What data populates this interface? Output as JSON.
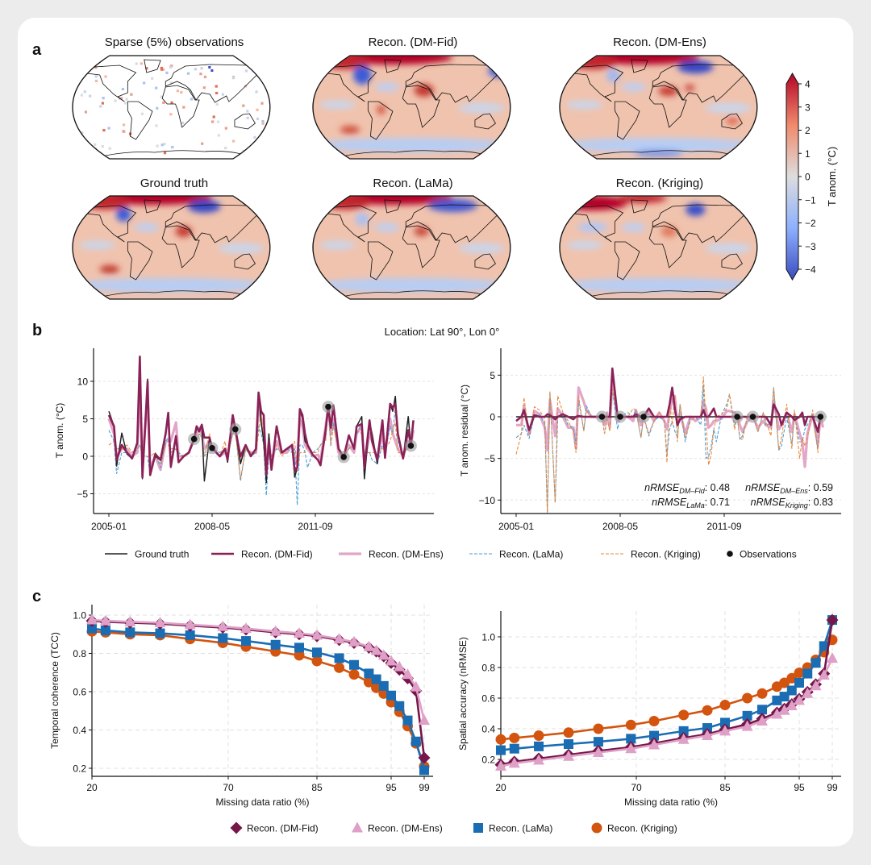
{
  "panel_labels": {
    "a": "a",
    "b": "b",
    "c": "c"
  },
  "panel_a": {
    "maps": [
      {
        "title": "Sparse (5%) observations"
      },
      {
        "title": "Recon. (DM-Fid)"
      },
      {
        "title": "Recon. (DM-Ens)"
      },
      {
        "title": "Ground truth"
      },
      {
        "title": "Recon. (LaMa)"
      },
      {
        "title": "Recon. (Kriging)"
      }
    ],
    "colorbar": {
      "label": "T anom. (°C)",
      "ticks": [
        "4",
        "3",
        "2",
        "1",
        "0",
        "−1",
        "−2",
        "−3",
        "−4"
      ],
      "range": [
        -4,
        4
      ],
      "colormap": [
        "#b40426",
        "#f08a6c",
        "#dddddd",
        "#8db0fe",
        "#3b4cc0"
      ]
    }
  },
  "panel_b": {
    "location": "Location: Lat 90°, Lon 0°",
    "chart_data": [
      {
        "type": "line",
        "ylabel": "T anom. (°C)",
        "yticks": [
          "−5",
          "0",
          "5",
          "10"
        ],
        "ytick_values": [
          -5,
          0,
          5,
          10
        ],
        "xticks": [
          "2005-01",
          "2008-05",
          "2011-09"
        ],
        "ylim": [
          -7,
          14.5
        ],
        "grid": "horizontal dashed"
      },
      {
        "type": "line",
        "ylabel": "T anom. residual (°C)",
        "yticks": [
          "−10",
          "−5",
          "0",
          "5"
        ],
        "ytick_values": [
          -10,
          -5,
          0,
          5
        ],
        "xticks": [
          "2005-01",
          "2008-05",
          "2011-09"
        ],
        "ylim": [
          -11.5,
          8
        ],
        "grid": "horizontal dashed",
        "metrics": [
          {
            "label": "nRMSE",
            "sub": "DM–Fid",
            "value": ": 0.48"
          },
          {
            "label": "nRMSE",
            "sub": "DM–Ens",
            "value": ": 0.59"
          },
          {
            "label": "nRMSE",
            "sub": "LaMa",
            "value": ": 0.71"
          },
          {
            "label": "nRMSE",
            "sub": "Kriging",
            "value": ": 0.83"
          }
        ]
      }
    ],
    "series_data": {
      "dates": [
        "2005-01",
        "2005-03",
        "2005-04",
        "2005-06",
        "2005-08",
        "2005-10",
        "2005-12",
        "2006-01",
        "2006-02",
        "2006-04",
        "2006-05",
        "2006-07",
        "2006-09",
        "2006-11",
        "2006-12",
        "2007-01",
        "2007-03",
        "2007-04",
        "2007-06",
        "2007-08",
        "2007-10",
        "2007-11",
        "2007-12",
        "2008-01",
        "2008-02",
        "2008-04",
        "2008-05",
        "2008-08",
        "2008-10",
        "2008-11",
        "2009-01",
        "2009-02",
        "2009-04",
        "2009-06",
        "2009-08",
        "2009-10",
        "2009-11",
        "2009-12",
        "2010-01",
        "2010-02",
        "2010-03",
        "2010-04",
        "2010-06",
        "2010-08",
        "2010-10",
        "2010-12",
        "2011-01",
        "2011-02",
        "2011-03",
        "2011-04",
        "2011-05",
        "2011-06",
        "2011-08",
        "2011-10",
        "2011-11",
        "2012-01",
        "2012-02",
        "2012-03",
        "2012-04",
        "2012-06",
        "2012-08",
        "2012-10",
        "2012-12",
        "2013-01",
        "2013-03",
        "2013-04",
        "2013-06",
        "2013-07",
        "2013-09",
        "2013-11",
        "2013-12",
        "2014-02",
        "2014-03",
        "2014-04",
        "2014-05",
        "2014-07",
        "2014-09",
        "2014-10",
        "2014-11"
      ],
      "ground_truth": [
        6,
        4,
        -1.3,
        3.1,
        0.3,
        -0.3,
        1.8,
        13,
        -3,
        10.3,
        -2.5,
        0,
        -0.5,
        3.3,
        5.8,
        -1.5,
        2.7,
        -0.8,
        0,
        0.5,
        2.3,
        4,
        3.3,
        4.2,
        -3.3,
        2.5,
        1.1,
        0,
        1,
        -0.8,
        5.5,
        3.6,
        -1,
        1.5,
        0,
        1,
        8.5,
        4.5,
        2,
        -3.5,
        3,
        -1.5,
        4,
        0.5,
        1,
        1.5,
        -2.8,
        -1.5,
        6.3,
        5,
        2,
        1.5,
        0.2,
        -0.5,
        -1.2,
        3.5,
        6.6,
        4,
        6.8,
        1,
        -0.1,
        2.8,
        1,
        4,
        5.3,
        -3,
        4.5,
        3,
        -1,
        4.8,
        0.2,
        7,
        6,
        8,
        3,
        -0.3,
        5.3,
        1.4,
        4.8
      ],
      "dm_fid": [
        5.5,
        4,
        -0.5,
        1.5,
        0.5,
        -0.3,
        1.8,
        13.3,
        -2.8,
        10,
        -2.5,
        0.3,
        -0.5,
        3,
        5.8,
        -1.4,
        2.7,
        -0.8,
        0,
        0.5,
        2.3,
        4,
        3.3,
        4.2,
        2.5,
        2.5,
        1.1,
        0,
        1,
        -0.5,
        5.5,
        3.6,
        0,
        1.5,
        0,
        1,
        8.5,
        6,
        5.5,
        -2.5,
        2,
        -1.8,
        4,
        0.5,
        1,
        1.5,
        -2,
        -1.5,
        6.3,
        5.5,
        3,
        1.5,
        0.2,
        -0.5,
        -1.2,
        3.5,
        6.6,
        3.8,
        6.8,
        1,
        -0.1,
        2.8,
        1,
        4,
        4.3,
        -1.5,
        4.8,
        2,
        -0.5,
        4.8,
        -0.2,
        7,
        6.5,
        7,
        3,
        -0.3,
        3.5,
        1.4,
        4.8
      ],
      "dm_ens": [
        5,
        3,
        0,
        1,
        1,
        0,
        0.5,
        9,
        -1,
        8,
        -1.5,
        0,
        -1.8,
        2,
        2,
        2,
        4.5,
        0,
        0,
        0.5,
        2.3,
        3,
        3.8,
        3,
        1,
        2,
        1.1,
        0,
        0.5,
        0,
        4.5,
        3.6,
        -0.5,
        1,
        0.5,
        0.5,
        7,
        5,
        4,
        -1,
        2,
        -1,
        2,
        0.5,
        0.5,
        1.5,
        -1,
        -0.5,
        5,
        4,
        1.5,
        1,
        0,
        0.2,
        -0.5,
        4,
        6.6,
        3,
        5,
        0.5,
        -0.1,
        1.5,
        0.5,
        3,
        4,
        -1,
        3,
        2,
        -0.5,
        3,
        0.5,
        5,
        3,
        2,
        1,
        0,
        2,
        1.4,
        3.5
      ],
      "lama": [
        3.5,
        2,
        -2.3,
        0.5,
        0.5,
        0,
        1,
        1.5,
        0,
        0,
        -2.5,
        0.5,
        -1.5,
        2,
        2.5,
        0.5,
        1,
        0.5,
        0,
        0.5,
        2.3,
        2,
        3,
        2.5,
        0,
        1,
        1.1,
        0.5,
        1,
        0,
        3,
        3.6,
        -3.3,
        1,
        0,
        0.5,
        4,
        3,
        1.5,
        -5.2,
        0.5,
        0,
        1,
        0.5,
        1,
        0.5,
        1,
        -6.5,
        1.5,
        1.5,
        0.5,
        -1.5,
        0.5,
        1,
        1.5,
        2.5,
        6.6,
        1.3,
        4.5,
        1,
        -0.1,
        1,
        1.5,
        3,
        4.5,
        0.5,
        0.5,
        -0.5,
        -1,
        1.5,
        0.5,
        4,
        3,
        6.5,
        2,
        0,
        1.5,
        1.4,
        4
      ],
      "kriging": [
        1.5,
        2,
        1,
        1,
        1.5,
        0.5,
        1.5,
        1.5,
        0,
        0,
        0,
        0.5,
        -1,
        1.5,
        1.5,
        1,
        1,
        0,
        0,
        0.5,
        2.3,
        2,
        3,
        2.5,
        0,
        3,
        1.1,
        0,
        2,
        0,
        3,
        3.6,
        -3,
        1,
        0.5,
        0.5,
        3,
        6.5,
        1,
        -1,
        0,
        0,
        1.5,
        0,
        1,
        1.5,
        2,
        -2,
        0.5,
        0.5,
        0.5,
        1.5,
        0.5,
        0.5,
        1.5,
        2,
        6.6,
        1.5,
        4,
        1.3,
        -0.1,
        1,
        1.5,
        3.5,
        3,
        0.5,
        0.5,
        0.5,
        0.5,
        1,
        1,
        2,
        3.5,
        4.5,
        0.5,
        0.5,
        1,
        1.4,
        4
      ],
      "observations": {
        "dates": [
          "2007-10",
          "2008-05",
          "2009-02",
          "2012-02",
          "2012-08",
          "2014-10"
        ],
        "values": [
          2.3,
          1.1,
          3.6,
          6.6,
          -0.1,
          1.4
        ]
      }
    },
    "legend": [
      "Ground truth",
      "Recon. (DM-Fid)",
      "Recon. (DM-Ens)",
      "Recon. (LaMa)",
      "Recon. (Kriging)",
      "Observations"
    ]
  },
  "panel_c": {
    "chart_data": [
      {
        "type": "line",
        "xlabel": "Missing data ratio (%)",
        "ylabel": "Temporal coherence (TCC)",
        "xticks": [
          20,
          70,
          85,
          95,
          99
        ],
        "yticks": [
          "0.2",
          "0.4",
          "0.6",
          "0.8",
          "1.0"
        ],
        "ytick_values": [
          0.2,
          0.4,
          0.6,
          0.8,
          1.0
        ],
        "ylim": [
          0.17,
          1.03
        ],
        "grid": "dashed",
        "x": [
          20,
          25,
          34,
          45,
          56,
          68,
          73,
          78,
          82,
          85,
          88,
          90,
          92,
          93,
          94,
          95,
          96,
          97,
          98,
          99
        ],
        "series": [
          {
            "name": "Recon. (Kriging)",
            "values": [
              0.915,
              0.91,
              0.9,
              0.895,
              0.875,
              0.855,
              0.835,
              0.81,
              0.79,
              0.76,
              0.725,
              0.69,
              0.65,
              0.62,
              0.59,
              0.545,
              0.495,
              0.42,
              0.33,
              0.21
            ]
          },
          {
            "name": "Recon. (LaMa)",
            "values": [
              0.93,
              0.92,
              0.91,
              0.905,
              0.895,
              0.88,
              0.865,
              0.845,
              0.83,
              0.805,
              0.775,
              0.74,
              0.695,
              0.665,
              0.63,
              0.58,
              0.525,
              0.45,
              0.34,
              0.19
            ]
          },
          {
            "name": "Recon. (DM-Fid)",
            "values": [
              0.97,
              0.965,
              0.96,
              0.955,
              0.945,
              0.935,
              0.925,
              0.91,
              0.9,
              0.89,
              0.87,
              0.855,
              0.83,
              0.81,
              0.785,
              0.75,
              0.715,
              0.67,
              0.605,
              0.255
            ]
          },
          {
            "name": "Recon. (DM-Ens)",
            "values": [
              0.975,
              0.97,
              0.965,
              0.96,
              0.95,
              0.94,
              0.93,
              0.915,
              0.905,
              0.895,
              0.875,
              0.86,
              0.835,
              0.815,
              0.79,
              0.76,
              0.73,
              0.69,
              0.625,
              0.45
            ]
          }
        ]
      },
      {
        "type": "line",
        "xlabel": "Missing data ratio (%)",
        "ylabel": "Spatial accuracy (nRMSE)",
        "xticks": [
          20,
          70,
          85,
          95,
          99
        ],
        "yticks": [
          "0.2",
          "0.4",
          "0.6",
          "0.8",
          "1.0"
        ],
        "ytick_values": [
          0.2,
          0.4,
          0.6,
          0.8,
          1.0
        ],
        "ylim": [
          0.09,
          1.16
        ],
        "grid": "dashed",
        "x": [
          20,
          25,
          34,
          45,
          56,
          68,
          73,
          78,
          82,
          85,
          88,
          90,
          92,
          93,
          94,
          95,
          96,
          97,
          98,
          99
        ],
        "series": [
          {
            "name": "Recon. (Kriging)",
            "values": [
              0.33,
              0.34,
              0.355,
              0.375,
              0.4,
              0.425,
              0.45,
              0.49,
              0.52,
              0.555,
              0.6,
              0.63,
              0.675,
              0.7,
              0.73,
              0.765,
              0.8,
              0.85,
              0.9,
              0.98
            ]
          },
          {
            "name": "Recon. (LaMa)",
            "values": [
              0.26,
              0.27,
              0.285,
              0.3,
              0.315,
              0.335,
              0.355,
              0.385,
              0.405,
              0.44,
              0.485,
              0.525,
              0.585,
              0.61,
              0.65,
              0.7,
              0.76,
              0.83,
              0.94,
              1.11
            ]
          },
          {
            "name": "Recon. (DM-Fid)",
            "values": [
              0.165,
              0.185,
              0.205,
              0.23,
              0.255,
              0.28,
              0.305,
              0.34,
              0.365,
              0.395,
              0.43,
              0.465,
              0.505,
              0.53,
              0.56,
              0.595,
              0.64,
              0.69,
              0.76,
              1.11
            ]
          },
          {
            "name": "Recon. (DM-Ens)",
            "values": [
              0.155,
              0.175,
              0.195,
              0.22,
              0.245,
              0.27,
              0.295,
              0.33,
              0.355,
              0.385,
              0.415,
              0.45,
              0.495,
              0.52,
              0.55,
              0.585,
              0.63,
              0.68,
              0.75,
              0.86
            ]
          }
        ]
      }
    ],
    "legend": [
      "Recon. (DM-Fid)",
      "Recon. (DM-Ens)",
      "Recon. (LaMa)",
      "Recon. (Kriging)"
    ]
  },
  "colors": {
    "ground_truth": "#222222",
    "dm_fid": "#8b2257",
    "dm_ens": "#e2a6c8",
    "lama": "#4a9ed8",
    "kriging": "#ea8a3e",
    "c_dm_fid": "#761649",
    "c_dm_ens": "#dea0c6",
    "c_lama": "#1a6db3",
    "c_kriging": "#d3540f",
    "observation": "#111111"
  }
}
